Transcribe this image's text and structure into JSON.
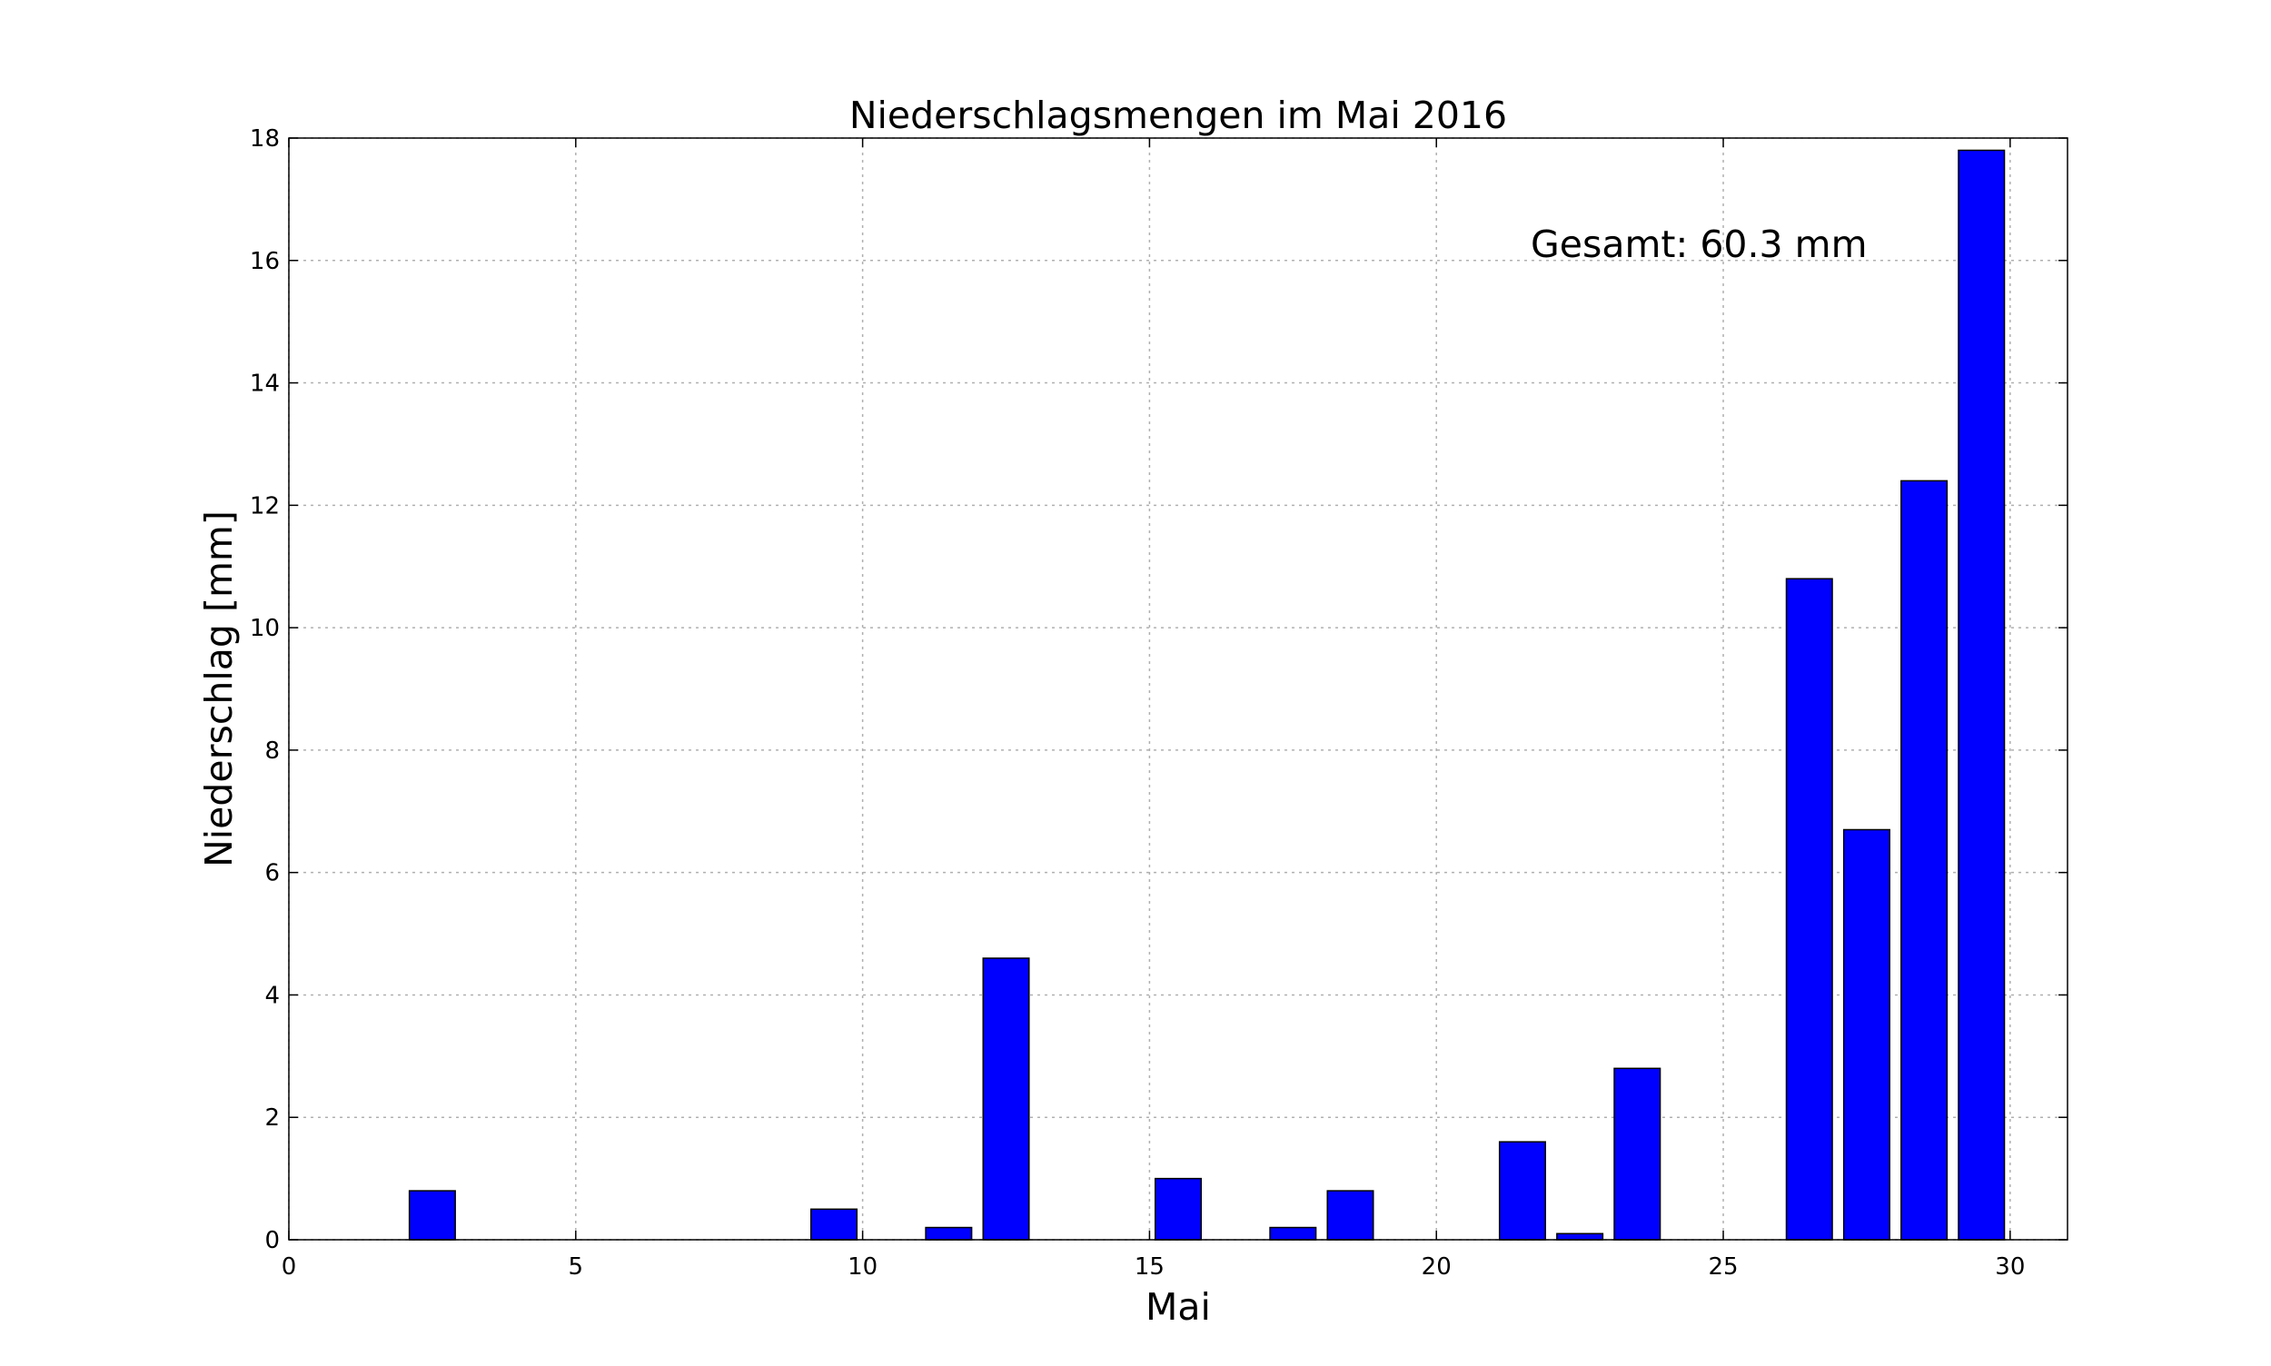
{
  "chart_data": {
    "type": "bar",
    "title": "Niederschlagsmengen im Mai 2016",
    "xlabel": "Mai",
    "ylabel": "Niederschlag [mm]",
    "xlim": [
      0,
      31
    ],
    "ylim": [
      0,
      18
    ],
    "xticks": [
      0,
      5,
      10,
      15,
      20,
      25,
      30
    ],
    "yticks": [
      0,
      2,
      4,
      6,
      8,
      10,
      12,
      14,
      16,
      18
    ],
    "grid": true,
    "bar_color": "#0000ff",
    "bar_width": 0.8,
    "x": [
      1,
      2,
      3,
      4,
      5,
      6,
      7,
      8,
      9,
      10,
      11,
      12,
      13,
      14,
      15,
      16,
      17,
      18,
      19,
      20,
      21,
      22,
      23,
      24,
      25,
      26,
      27,
      28,
      29
    ],
    "values": [
      0,
      0.8,
      0,
      0,
      0,
      0,
      0,
      0,
      0.5,
      0,
      0.2,
      4.6,
      0,
      0,
      1.0,
      0,
      0.2,
      0.8,
      0,
      0,
      1.6,
      0.1,
      2.8,
      0,
      0,
      10.8,
      6.7,
      12.4,
      17.8
    ],
    "annotation": "Gesamt: 60.3 mm"
  }
}
